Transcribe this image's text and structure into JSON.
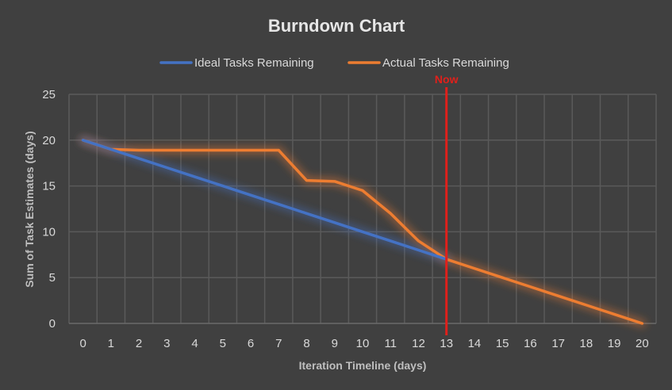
{
  "chart_data": {
    "type": "line",
    "title": "Burndown Chart",
    "xlabel": "Iteration Timeline (days)",
    "ylabel": "Sum of Task Estimates (days)",
    "x": [
      0,
      1,
      2,
      3,
      4,
      5,
      6,
      7,
      8,
      9,
      10,
      11,
      12,
      13,
      14,
      15,
      16,
      17,
      18,
      19,
      20
    ],
    "xlim": [
      0,
      20
    ],
    "ylim": [
      0,
      25
    ],
    "yticks": [
      0,
      5,
      10,
      15,
      20,
      25
    ],
    "grid": true,
    "legend_position": "top-center",
    "series": [
      {
        "name": "Ideal Tasks Remaining",
        "color": "#4472c4",
        "x": [
          0,
          1,
          2,
          3,
          4,
          5,
          6,
          7,
          8,
          9,
          10,
          11,
          12,
          13
        ],
        "values": [
          20,
          19,
          18,
          17,
          16,
          15,
          14,
          13,
          12,
          11,
          10,
          9,
          8,
          7
        ]
      },
      {
        "name": "Actual Tasks Remaining",
        "color": "#ed7d31",
        "x": [
          0,
          1,
          2,
          3,
          4,
          5,
          6,
          7,
          8,
          9,
          10,
          11,
          12,
          13,
          14,
          15,
          16,
          17,
          18,
          19,
          20
        ],
        "values": [
          20,
          19,
          18.9,
          18.9,
          18.9,
          18.9,
          18.9,
          18.9,
          15.6,
          15.5,
          14.5,
          12,
          9,
          7,
          6,
          5,
          4,
          3,
          2,
          1,
          0
        ]
      }
    ],
    "annotations": [
      {
        "label": "Now",
        "x": 13,
        "color": "#e0201b"
      }
    ]
  }
}
